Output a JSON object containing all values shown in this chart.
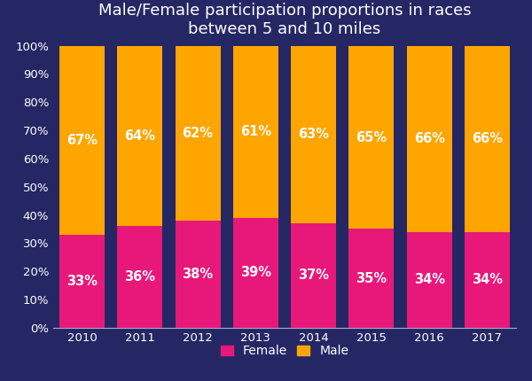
{
  "title": "Male/Female participation proportions in races\nbetween 5 and 10 miles",
  "years": [
    "2010",
    "2011",
    "2012",
    "2013",
    "2014",
    "2015",
    "2016",
    "2017"
  ],
  "female_pct": [
    33,
    36,
    38,
    39,
    37,
    35,
    34,
    34
  ],
  "male_pct": [
    67,
    64,
    62,
    61,
    63,
    65,
    66,
    66
  ],
  "female_color": "#E8187A",
  "male_color": "#FFA500",
  "background_color": "#252764",
  "text_color": "#FFFFFF",
  "bar_width": 0.78,
  "title_fontsize": 13,
  "label_fontsize": 10.5,
  "tick_fontsize": 9.5,
  "legend_fontsize": 10,
  "ylim": [
    0,
    100
  ],
  "ytick_labels": [
    "0%",
    "10%",
    "20%",
    "30%",
    "40%",
    "50%",
    "60%",
    "70%",
    "80%",
    "90%",
    "100%"
  ],
  "ytick_values": [
    0,
    10,
    20,
    30,
    40,
    50,
    60,
    70,
    80,
    90,
    100
  ]
}
